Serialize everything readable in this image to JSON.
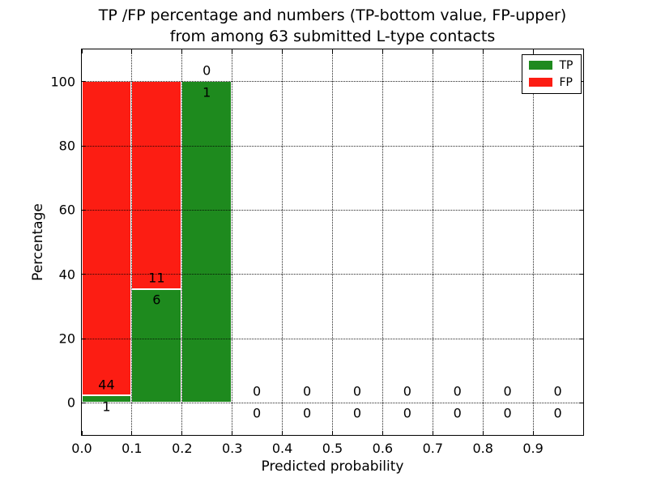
{
  "chart_data": {
    "type": "bar",
    "stacked": true,
    "title_line1": "TP /FP percentage and numbers (TP-bottom value, FP-upper)",
    "title_line2": "from among 63 submitted L-type contacts",
    "xlabel": "Predicted probability",
    "ylabel": "Percentage",
    "xlim": [
      0.0,
      1.0
    ],
    "ylim": [
      -10,
      110
    ],
    "grid": "dotted, on top of bars",
    "xticks": [
      {
        "value": 0.0,
        "label": "0.0"
      },
      {
        "value": 0.1,
        "label": "0.1"
      },
      {
        "value": 0.2,
        "label": "0.2"
      },
      {
        "value": 0.3,
        "label": "0.3"
      },
      {
        "value": 0.4,
        "label": "0.4"
      },
      {
        "value": 0.5,
        "label": "0.5"
      },
      {
        "value": 0.6,
        "label": "0.6"
      },
      {
        "value": 0.7,
        "label": "0.7"
      },
      {
        "value": 0.8,
        "label": "0.8"
      },
      {
        "value": 0.9,
        "label": "0.9"
      }
    ],
    "yticks": [
      {
        "value": 0,
        "label": "0"
      },
      {
        "value": 20,
        "label": "20"
      },
      {
        "value": 40,
        "label": "40"
      },
      {
        "value": 60,
        "label": "60"
      },
      {
        "value": 80,
        "label": "80"
      },
      {
        "value": 100,
        "label": "100"
      }
    ],
    "colors": {
      "tp": "#1e8a1e",
      "fp": "#fc1d13",
      "bar_edge": "#ffffff"
    },
    "bins": [
      {
        "x0": 0.0,
        "x1": 0.1,
        "tp_count": 1,
        "fp_count": 44,
        "tp_pct": 2.22,
        "fp_pct": 97.78
      },
      {
        "x0": 0.1,
        "x1": 0.2,
        "tp_count": 6,
        "fp_count": 11,
        "tp_pct": 35.29,
        "fp_pct": 64.71
      },
      {
        "x0": 0.2,
        "x1": 0.3,
        "tp_count": 1,
        "fp_count": 0,
        "tp_pct": 100,
        "fp_pct": 0
      },
      {
        "x0": 0.3,
        "x1": 0.4,
        "tp_count": 0,
        "fp_count": 0,
        "tp_pct": 0,
        "fp_pct": 0
      },
      {
        "x0": 0.4,
        "x1": 0.5,
        "tp_count": 0,
        "fp_count": 0,
        "tp_pct": 0,
        "fp_pct": 0
      },
      {
        "x0": 0.5,
        "x1": 0.6,
        "tp_count": 0,
        "fp_count": 0,
        "tp_pct": 0,
        "fp_pct": 0
      },
      {
        "x0": 0.6,
        "x1": 0.7,
        "tp_count": 0,
        "fp_count": 0,
        "tp_pct": 0,
        "fp_pct": 0
      },
      {
        "x0": 0.7,
        "x1": 0.8,
        "tp_count": 0,
        "fp_count": 0,
        "tp_pct": 0,
        "fp_pct": 0
      },
      {
        "x0": 0.8,
        "x1": 0.9,
        "tp_count": 0,
        "fp_count": 0,
        "tp_pct": 0,
        "fp_pct": 0
      },
      {
        "x0": 0.9,
        "x1": 1.0,
        "tp_count": 0,
        "fp_count": 0,
        "tp_pct": 0,
        "fp_pct": 0
      }
    ],
    "legend": {
      "position": "upper right",
      "entries": [
        {
          "label": "TP",
          "color": "#1e8a1e"
        },
        {
          "label": "FP",
          "color": "#fc1d13"
        }
      ]
    }
  }
}
